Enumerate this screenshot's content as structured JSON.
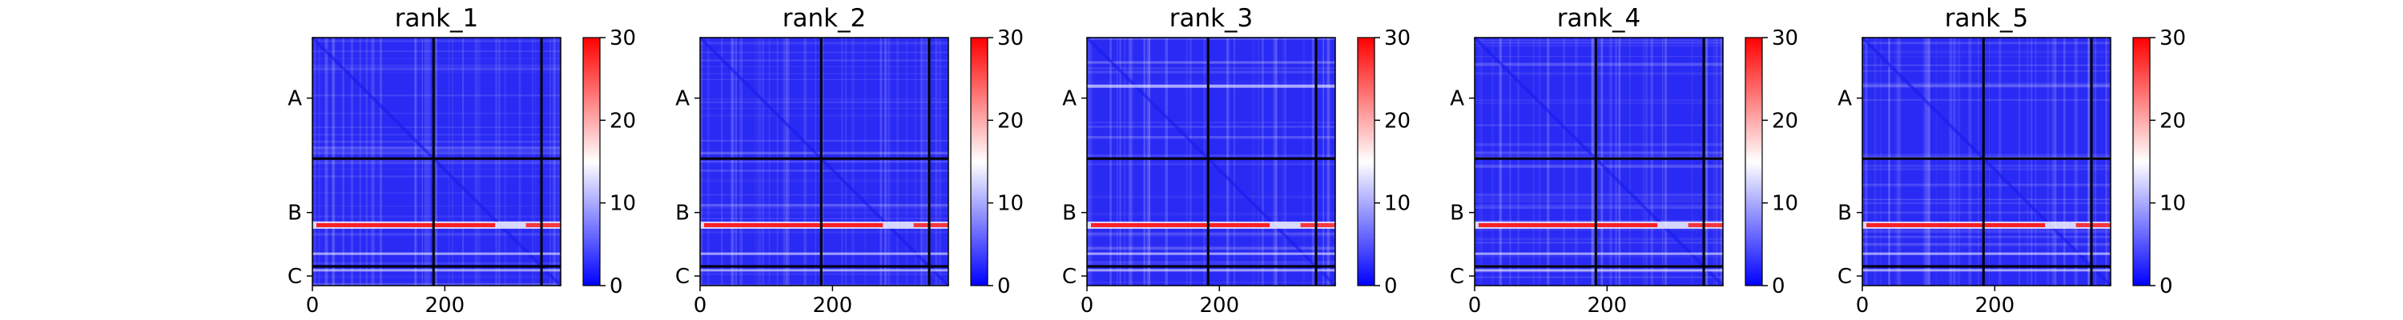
{
  "chart_data": [
    {
      "type": "heatmap",
      "title": "rank_1",
      "xticks": [
        0,
        200
      ],
      "yticks": [
        "A",
        "B",
        "C"
      ],
      "colorbar": {
        "min": 0,
        "max": 30,
        "ticks": [
          0,
          10,
          20,
          30
        ]
      }
    },
    {
      "type": "heatmap",
      "title": "rank_2",
      "xticks": [
        0,
        200
      ],
      "yticks": [
        "A",
        "B",
        "C"
      ],
      "colorbar": {
        "min": 0,
        "max": 30,
        "ticks": [
          0,
          10,
          20,
          30
        ]
      }
    },
    {
      "type": "heatmap",
      "title": "rank_3",
      "xticks": [
        0,
        200
      ],
      "yticks": [
        "A",
        "B",
        "C"
      ],
      "colorbar": {
        "min": 0,
        "max": 30,
        "ticks": [
          0,
          10,
          20,
          30
        ]
      }
    },
    {
      "type": "heatmap",
      "title": "rank_4",
      "xticks": [
        0,
        200
      ],
      "yticks": [
        "A",
        "B",
        "C"
      ],
      "colorbar": {
        "min": 0,
        "max": 30,
        "ticks": [
          0,
          10,
          20,
          30
        ]
      }
    },
    {
      "type": "heatmap",
      "title": "rank_5",
      "xticks": [
        0,
        200
      ],
      "yticks": [
        "A",
        "B",
        "C"
      ],
      "colorbar": {
        "min": 0,
        "max": 30,
        "ticks": [
          0,
          10,
          20,
          30
        ]
      }
    }
  ],
  "colors": {
    "low": "#0000ff",
    "mid": "#ffffff",
    "high": "#ff0000",
    "background": "#2a2af5",
    "chain_boundary": "#000000"
  }
}
